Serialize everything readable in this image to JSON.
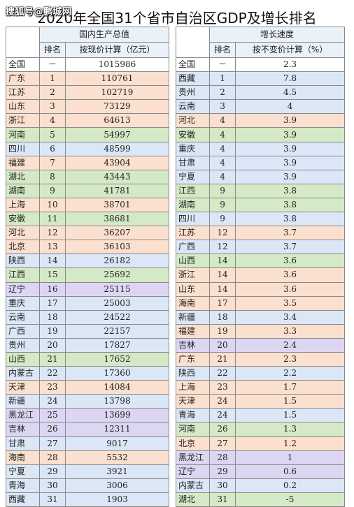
{
  "watermark": "搜狐号@鹏城网",
  "title": "2020年全国31个省市自治区GDP及增长排名",
  "left_header": {
    "group": "国内生产总值",
    "rank": "排名",
    "value": "按现价计算（亿元）"
  },
  "right_header": {
    "group": "增长速度",
    "rank": "排名",
    "value": "按不变价计算（%）"
  },
  "left_rows": [
    {
      "name": "全国",
      "rank": "－",
      "value": "1015986",
      "color": "#ffffff"
    },
    {
      "name": "广东",
      "rank": "1",
      "value": "110761",
      "color": "#fbe0cf"
    },
    {
      "name": "江苏",
      "rank": "2",
      "value": "102719",
      "color": "#fbe0cf"
    },
    {
      "name": "山东",
      "rank": "3",
      "value": "73129",
      "color": "#fbe0cf"
    },
    {
      "name": "浙江",
      "rank": "4",
      "value": "64613",
      "color": "#fbe0cf"
    },
    {
      "name": "河南",
      "rank": "5",
      "value": "54997",
      "color": "#d4e9c6"
    },
    {
      "name": "四川",
      "rank": "6",
      "value": "48599",
      "color": "#dbe7f6"
    },
    {
      "name": "福建",
      "rank": "7",
      "value": "43904",
      "color": "#fbe0cf"
    },
    {
      "name": "湖北",
      "rank": "8",
      "value": "43443",
      "color": "#d4e9c6"
    },
    {
      "name": "湖南",
      "rank": "9",
      "value": "41781",
      "color": "#d4e9c6"
    },
    {
      "name": "上海",
      "rank": "10",
      "value": "38701",
      "color": "#fbe0cf"
    },
    {
      "name": "安徽",
      "rank": "11",
      "value": "38681",
      "color": "#d4e9c6"
    },
    {
      "name": "河北",
      "rank": "12",
      "value": "36207",
      "color": "#fbe0cf"
    },
    {
      "name": "北京",
      "rank": "13",
      "value": "36103",
      "color": "#fbe0cf"
    },
    {
      "name": "陕西",
      "rank": "14",
      "value": "26182",
      "color": "#dbe7f6"
    },
    {
      "name": "江西",
      "rank": "15",
      "value": "25692",
      "color": "#d4e9c6"
    },
    {
      "name": "辽宁",
      "rank": "16",
      "value": "25115",
      "color": "#ddd6f2"
    },
    {
      "name": "重庆",
      "rank": "17",
      "value": "25003",
      "color": "#dbe7f6"
    },
    {
      "name": "云南",
      "rank": "18",
      "value": "24522",
      "color": "#dbe7f6"
    },
    {
      "name": "广西",
      "rank": "19",
      "value": "22157",
      "color": "#dbe7f6"
    },
    {
      "name": "贵州",
      "rank": "20",
      "value": "17827",
      "color": "#dbe7f6"
    },
    {
      "name": "山西",
      "rank": "21",
      "value": "17652",
      "color": "#d4e9c6"
    },
    {
      "name": "内蒙古",
      "rank": "22",
      "value": "17360",
      "color": "#dbe7f6"
    },
    {
      "name": "天津",
      "rank": "23",
      "value": "14084",
      "color": "#fbe0cf"
    },
    {
      "name": "新疆",
      "rank": "24",
      "value": "13798",
      "color": "#dbe7f6"
    },
    {
      "name": "黑龙江",
      "rank": "25",
      "value": "13699",
      "color": "#ddd6f2"
    },
    {
      "name": "吉林",
      "rank": "26",
      "value": "12311",
      "color": "#ddd6f2"
    },
    {
      "name": "甘肃",
      "rank": "27",
      "value": "9017",
      "color": "#dbe7f6"
    },
    {
      "name": "海南",
      "rank": "28",
      "value": "5532",
      "color": "#fbe0cf"
    },
    {
      "name": "宁夏",
      "rank": "29",
      "value": "3921",
      "color": "#dbe7f6"
    },
    {
      "name": "青海",
      "rank": "30",
      "value": "3006",
      "color": "#dbe7f6"
    },
    {
      "name": "西藏",
      "rank": "31",
      "value": "1903",
      "color": "#dbe7f6"
    }
  ],
  "right_rows": [
    {
      "name": "全国",
      "rank": "－",
      "value": "2.3",
      "color": "#ffffff"
    },
    {
      "name": "西藏",
      "rank": "1",
      "value": "7.8",
      "color": "#dbe7f6"
    },
    {
      "name": "贵州",
      "rank": "2",
      "value": "4.5",
      "color": "#dbe7f6"
    },
    {
      "name": "云南",
      "rank": "3",
      "value": "4",
      "color": "#dbe7f6"
    },
    {
      "name": "河北",
      "rank": "4",
      "value": "3.9",
      "color": "#fbe0cf"
    },
    {
      "name": "安徽",
      "rank": "4",
      "value": "3.9",
      "color": "#d4e9c6"
    },
    {
      "name": "重庆",
      "rank": "4",
      "value": "3.9",
      "color": "#dbe7f6"
    },
    {
      "name": "甘肃",
      "rank": "4",
      "value": "3.9",
      "color": "#dbe7f6"
    },
    {
      "name": "宁夏",
      "rank": "4",
      "value": "3.9",
      "color": "#dbe7f6"
    },
    {
      "name": "江西",
      "rank": "9",
      "value": "3.8",
      "color": "#d4e9c6"
    },
    {
      "name": "湖南",
      "rank": "9",
      "value": "3.8",
      "color": "#d4e9c6"
    },
    {
      "name": "四川",
      "rank": "9",
      "value": "3.8",
      "color": "#dbe7f6"
    },
    {
      "name": "江苏",
      "rank": "12",
      "value": "3.7",
      "color": "#fbe0cf"
    },
    {
      "name": "广西",
      "rank": "12",
      "value": "3.7",
      "color": "#dbe7f6"
    },
    {
      "name": "山西",
      "rank": "14",
      "value": "3.6",
      "color": "#d4e9c6"
    },
    {
      "name": "浙江",
      "rank": "14",
      "value": "3.6",
      "color": "#fbe0cf"
    },
    {
      "name": "山东",
      "rank": "14",
      "value": "3.6",
      "color": "#fbe0cf"
    },
    {
      "name": "海南",
      "rank": "17",
      "value": "3.5",
      "color": "#fbe0cf"
    },
    {
      "name": "新疆",
      "rank": "18",
      "value": "3.4",
      "color": "#dbe7f6"
    },
    {
      "name": "福建",
      "rank": "19",
      "value": "3.3",
      "color": "#fbe0cf"
    },
    {
      "name": "吉林",
      "rank": "20",
      "value": "2.4",
      "color": "#ddd6f2"
    },
    {
      "name": "广东",
      "rank": "21",
      "value": "2.3",
      "color": "#fbe0cf"
    },
    {
      "name": "陕西",
      "rank": "22",
      "value": "2.2",
      "color": "#dbe7f6"
    },
    {
      "name": "上海",
      "rank": "23",
      "value": "1.7",
      "color": "#fbe0cf"
    },
    {
      "name": "天津",
      "rank": "24",
      "value": "1.5",
      "color": "#fbe0cf"
    },
    {
      "name": "青海",
      "rank": "24",
      "value": "1.5",
      "color": "#dbe7f6"
    },
    {
      "name": "河南",
      "rank": "26",
      "value": "1.3",
      "color": "#d4e9c6"
    },
    {
      "name": "北京",
      "rank": "27",
      "value": "1.2",
      "color": "#fbe0cf"
    },
    {
      "name": "黑龙江",
      "rank": "28",
      "value": "1",
      "color": "#ddd6f2"
    },
    {
      "name": "辽宁",
      "rank": "29",
      "value": "0.6",
      "color": "#ddd6f2"
    },
    {
      "name": "内蒙古",
      "rank": "30",
      "value": "0.2",
      "color": "#dbe7f6"
    },
    {
      "name": "湖北",
      "rank": "31",
      "value": "-5",
      "color": "#d4e9c6"
    }
  ]
}
